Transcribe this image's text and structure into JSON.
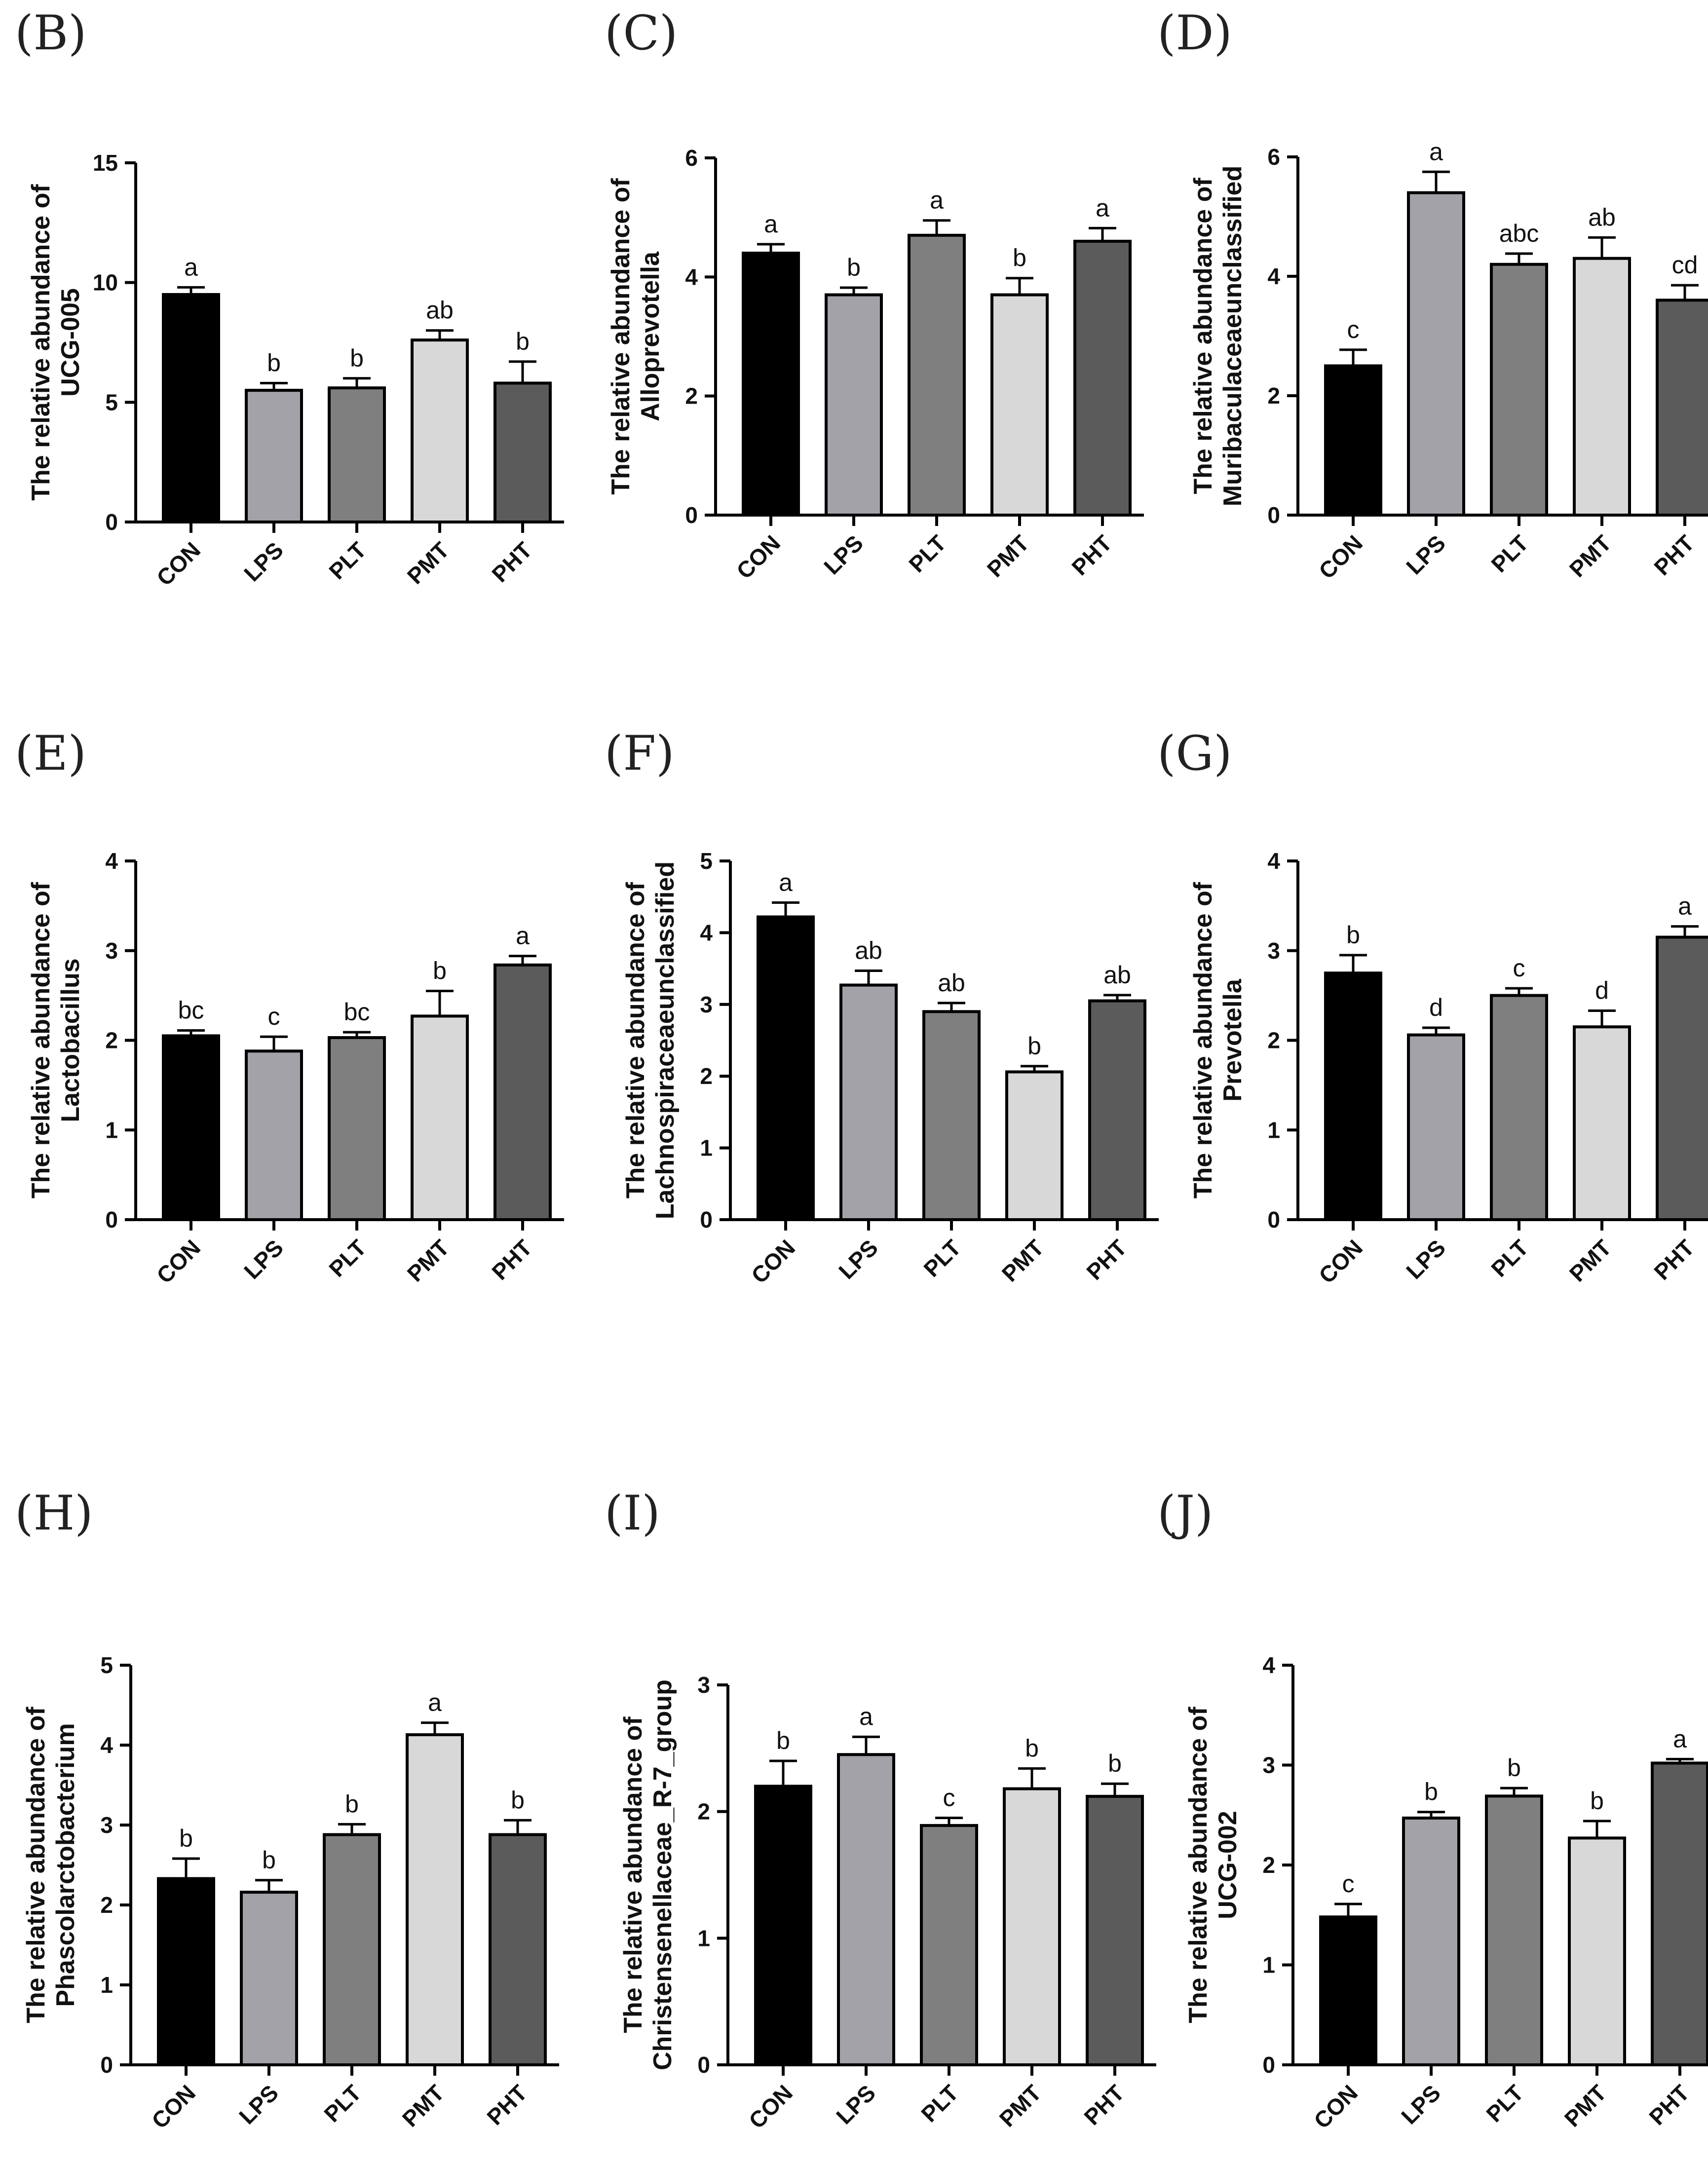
{
  "chart_data": [
    {
      "type": "bar",
      "panel": "(B)",
      "ylabel_line1": "The relative abundance of",
      "ylabel_line2": "UCG-005",
      "categories": [
        "CON",
        "LPS",
        "PLT",
        "PMT",
        "PHT"
      ],
      "values": [
        9.5,
        5.5,
        5.6,
        7.6,
        5.8
      ],
      "errors": [
        0.3,
        0.3,
        0.4,
        0.4,
        0.9
      ],
      "letters": [
        "a",
        "b",
        "b",
        "ab",
        "b"
      ],
      "ylim": [
        0,
        15
      ],
      "yticks": [
        "0",
        "5",
        "10",
        "15"
      ]
    },
    {
      "type": "bar",
      "panel": "(C)",
      "ylabel_line1": "The relative abundance of",
      "ylabel_line2": "Alloprevotella",
      "categories": [
        "CON",
        "LPS",
        "PLT",
        "PMT",
        "PHT"
      ],
      "values": [
        4.4,
        3.7,
        4.7,
        3.7,
        4.6
      ],
      "errors": [
        0.15,
        0.12,
        0.25,
        0.28,
        0.22
      ],
      "letters": [
        "a",
        "b",
        "a",
        "b",
        "a"
      ],
      "ylim": [
        0,
        6
      ],
      "yticks": [
        "0",
        "2",
        "4",
        "6"
      ]
    },
    {
      "type": "bar",
      "panel": "(D)",
      "ylabel_line1": "The relative abundance of",
      "ylabel_line2": "Muribaculaceaeunclassified",
      "categories": [
        "CON",
        "LPS",
        "PLT",
        "PMT",
        "PHT"
      ],
      "values": [
        2.5,
        5.4,
        4.2,
        4.3,
        3.6
      ],
      "errors": [
        0.27,
        0.35,
        0.18,
        0.35,
        0.25
      ],
      "letters": [
        "c",
        "a",
        "abc",
        "ab",
        "cd"
      ],
      "ylim": [
        0,
        6
      ],
      "yticks": [
        "0",
        "2",
        "4",
        "6"
      ]
    },
    {
      "type": "bar",
      "panel": "(E)",
      "ylabel_line1": "The relative abundance of",
      "ylabel_line2": "Lactobacillus",
      "categories": [
        "CON",
        "LPS",
        "PLT",
        "PMT",
        "PHT"
      ],
      "values": [
        2.05,
        1.88,
        2.03,
        2.27,
        2.84
      ],
      "errors": [
        0.06,
        0.16,
        0.06,
        0.28,
        0.1
      ],
      "letters": [
        "bc",
        "c",
        "bc",
        "b",
        "a"
      ],
      "ylim": [
        0,
        4
      ],
      "yticks": [
        "0",
        "1",
        "2",
        "3",
        "4"
      ]
    },
    {
      "type": "bar",
      "panel": "(F)",
      "ylabel_line1": "The relative abundance of",
      "ylabel_line2": "Lachnospiraceaeunclassified",
      "categories": [
        "CON",
        "LPS",
        "PLT",
        "PMT",
        "PHT"
      ],
      "values": [
        4.22,
        3.27,
        2.9,
        2.06,
        3.05
      ],
      "errors": [
        0.2,
        0.2,
        0.12,
        0.08,
        0.08
      ],
      "letters": [
        "a",
        "ab",
        "ab",
        "b",
        "ab"
      ],
      "ylim": [
        0,
        5
      ],
      "yticks": [
        "0",
        "1",
        "2",
        "3",
        "4",
        "5"
      ]
    },
    {
      "type": "bar",
      "panel": "(G)",
      "ylabel_line1": "The relative abundance of",
      "ylabel_line2": "Prevotella",
      "categories": [
        "CON",
        "LPS",
        "PLT",
        "PMT",
        "PHT"
      ],
      "values": [
        2.75,
        2.06,
        2.5,
        2.15,
        3.15
      ],
      "errors": [
        0.2,
        0.08,
        0.08,
        0.18,
        0.12
      ],
      "letters": [
        "b",
        "d",
        "c",
        "d",
        "a"
      ],
      "ylim": [
        0,
        4
      ],
      "yticks": [
        "0",
        "1",
        "2",
        "3",
        "4"
      ]
    },
    {
      "type": "bar",
      "panel": "(H)",
      "ylabel_line1": "The relative abundance of",
      "ylabel_line2": "Phascolarctobacterium",
      "categories": [
        "CON",
        "LPS",
        "PLT",
        "PMT",
        "PHT"
      ],
      "values": [
        2.33,
        2.16,
        2.88,
        4.13,
        2.88
      ],
      "errors": [
        0.25,
        0.15,
        0.13,
        0.15,
        0.18
      ],
      "letters": [
        "b",
        "b",
        "b",
        "a",
        "b"
      ],
      "ylim": [
        0,
        5
      ],
      "yticks": [
        "0",
        "1",
        "2",
        "3",
        "4",
        "5"
      ]
    },
    {
      "type": "bar",
      "panel": "(I)",
      "ylabel_line1": "The relative abundance of",
      "ylabel_line2": "Christensenellaceae_R-7_group",
      "categories": [
        "CON",
        "LPS",
        "PLT",
        "PMT",
        "PHT"
      ],
      "values": [
        2.2,
        2.45,
        1.89,
        2.18,
        2.12
      ],
      "errors": [
        0.2,
        0.14,
        0.06,
        0.16,
        0.1
      ],
      "letters": [
        "b",
        "a",
        "c",
        "b",
        "b"
      ],
      "ylim": [
        0,
        3
      ],
      "yticks": [
        "0",
        "1",
        "2",
        "3"
      ]
    },
    {
      "type": "bar",
      "panel": "(J)",
      "ylabel_line1": "The relative abundance of",
      "ylabel_line2": "UCG-002",
      "categories": [
        "CON",
        "LPS",
        "PLT",
        "PMT",
        "PHT"
      ],
      "values": [
        1.48,
        2.47,
        2.69,
        2.27,
        3.02
      ],
      "errors": [
        0.13,
        0.06,
        0.08,
        0.17,
        0.04
      ],
      "letters": [
        "c",
        "b",
        "b",
        "b",
        "a"
      ],
      "ylim": [
        0,
        4
      ],
      "yticks": [
        "0",
        "1",
        "2",
        "3",
        "4"
      ]
    }
  ],
  "colors": {
    "bars": [
      "#000000",
      "#a2a2a8",
      "#7f7f7f",
      "#d8d8d8",
      "#5b5b5b"
    ],
    "axis": "#000000"
  }
}
